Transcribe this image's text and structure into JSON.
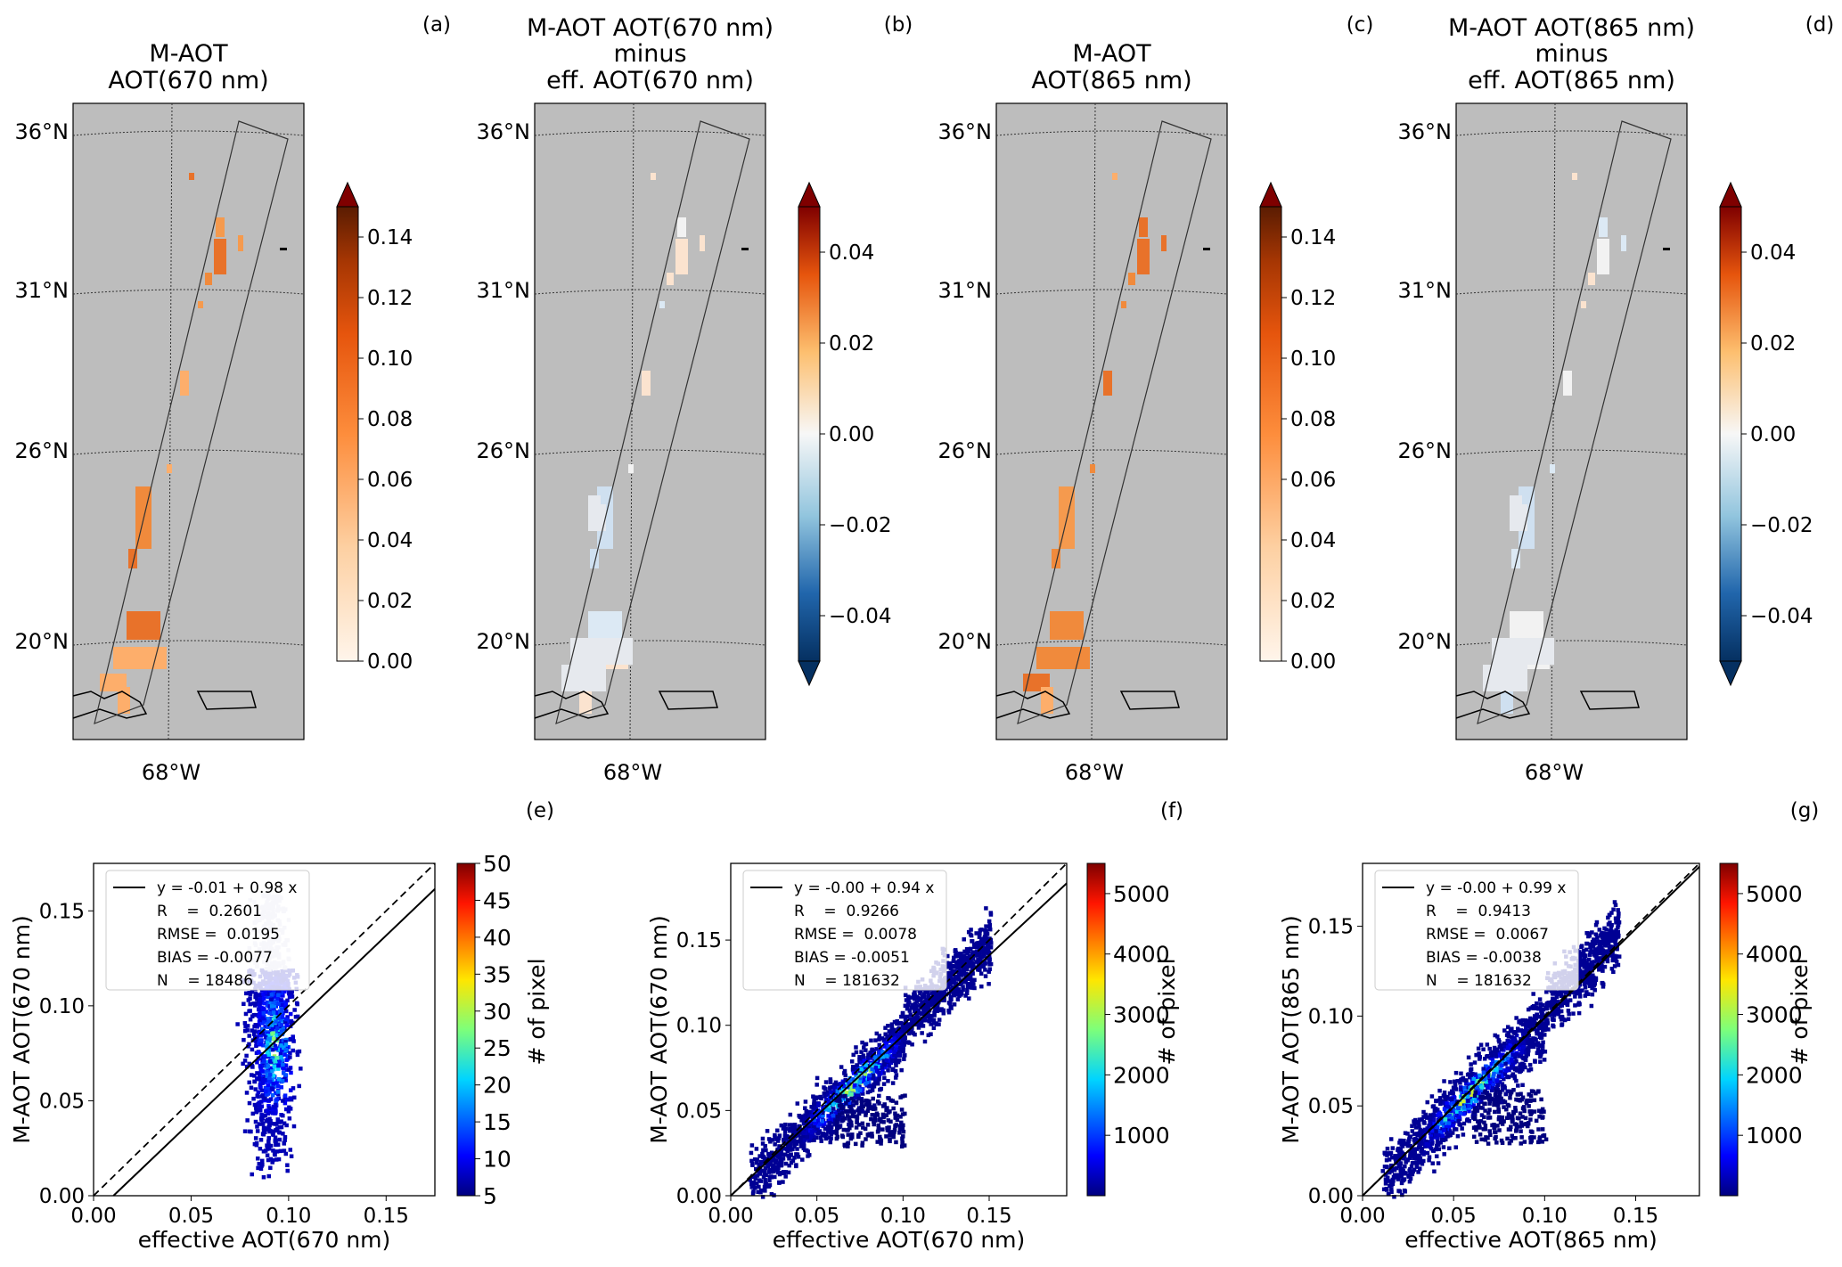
{
  "chart_data": [
    {
      "panel": "(a)",
      "type": "heatmap",
      "kind": "map",
      "title": [
        "M-AOT",
        "AOT(670 nm)"
      ],
      "lat_ticks": [
        "36°N",
        "31°N",
        "26°N",
        "20°N"
      ],
      "lon_ticks": [
        "68°W"
      ],
      "colorbar": {
        "cmap": "oranges",
        "range": [
          0,
          0.15
        ],
        "extend": "max",
        "ticks": [
          "0.00",
          "0.02",
          "0.04",
          "0.06",
          "0.08",
          "0.10",
          "0.12",
          "0.14"
        ]
      }
    },
    {
      "panel": "(b)",
      "type": "heatmap",
      "kind": "map",
      "title": [
        "M-AOT AOT(670 nm)",
        "minus",
        "eff. AOT(670 nm)"
      ],
      "lat_ticks": [
        "36°N",
        "31°N",
        "26°N",
        "20°N"
      ],
      "lon_ticks": [
        "68°W"
      ],
      "colorbar": {
        "cmap": "diverging",
        "range": [
          -0.05,
          0.05
        ],
        "extend": "both",
        "ticks": [
          "0.04",
          "0.02",
          "0.00",
          "−0.02",
          "−0.04"
        ]
      }
    },
    {
      "panel": "(c)",
      "type": "heatmap",
      "kind": "map",
      "title": [
        "M-AOT",
        "AOT(865 nm)"
      ],
      "lat_ticks": [
        "36°N",
        "31°N",
        "26°N",
        "20°N"
      ],
      "lon_ticks": [
        "68°W"
      ],
      "colorbar": {
        "cmap": "oranges",
        "range": [
          0,
          0.15
        ],
        "extend": "max",
        "ticks": [
          "0.00",
          "0.02",
          "0.04",
          "0.06",
          "0.08",
          "0.10",
          "0.12",
          "0.14"
        ]
      }
    },
    {
      "panel": "(d)",
      "type": "heatmap",
      "kind": "map",
      "title": [
        "M-AOT AOT(865 nm)",
        "minus",
        "eff. AOT(865 nm)"
      ],
      "lat_ticks": [
        "36°N",
        "31°N",
        "26°N",
        "20°N"
      ],
      "lon_ticks": [
        "68°W"
      ],
      "colorbar": {
        "cmap": "diverging",
        "range": [
          -0.05,
          0.05
        ],
        "extend": "both",
        "ticks": [
          "0.04",
          "0.02",
          "0.00",
          "−0.02",
          "−0.04"
        ]
      }
    },
    {
      "panel": "(e)",
      "type": "heatmap",
      "kind": "density-scatter",
      "xlabel": "effective AOT(670 nm)",
      "ylabel": "M-AOT AOT(670 nm)",
      "xlim": [
        0,
        0.175
      ],
      "ylim": [
        0,
        0.175
      ],
      "xticks": [
        "0.00",
        "0.05",
        "0.10",
        "0.15"
      ],
      "yticks": [
        "0.00",
        "0.05",
        "0.10",
        "0.15"
      ],
      "fit": {
        "intercept": -0.01,
        "slope": 0.98
      },
      "legend": [
        "y = -0.01 + 0.98 x",
        "R    =  0.2601",
        "RMSE =  0.0195",
        "BIAS = -0.0077",
        "N    = 18486"
      ],
      "legend_position": "upper-left",
      "cluster": {
        "x_center": 0.09,
        "x_spread": 0.008,
        "y_min": 0.01,
        "y_max": 0.12
      },
      "colorbar": {
        "label": "# of pixel",
        "range": [
          5,
          50
        ],
        "ticks": [
          "5",
          "10",
          "15",
          "20",
          "25",
          "30",
          "35",
          "40",
          "45",
          "50"
        ]
      }
    },
    {
      "panel": "(f)",
      "type": "heatmap",
      "kind": "density-scatter",
      "xlabel": "effective AOT(670 nm)",
      "ylabel": "M-AOT AOT(670 nm)",
      "xlim": [
        0,
        0.195
      ],
      "ylim": [
        0,
        0.195
      ],
      "xticks": [
        "0.00",
        "0.05",
        "0.10",
        "0.15"
      ],
      "yticks": [
        "0.00",
        "0.05",
        "0.10",
        "0.15"
      ],
      "fit": {
        "intercept": -0.0,
        "slope": 0.94
      },
      "legend": [
        "y = -0.00 + 0.94 x",
        "R    =  0.9266",
        "RMSE =  0.0078",
        "BIAS = -0.0051",
        "N    = 181632"
      ],
      "legend_position": "upper-left",
      "cluster": {
        "x_min": 0.01,
        "x_max": 0.15,
        "peak_x": 0.07
      },
      "colorbar": {
        "label": "# of pixel",
        "range": [
          0,
          5500
        ],
        "ticks": [
          "1000",
          "2000",
          "3000",
          "4000",
          "5000"
        ]
      }
    },
    {
      "panel": "(g)",
      "type": "heatmap",
      "kind": "density-scatter",
      "xlabel": "effective AOT(865 nm)",
      "ylabel": "M-AOT AOT(865 nm)",
      "xlim": [
        0,
        0.185
      ],
      "ylim": [
        0,
        0.185
      ],
      "xticks": [
        "0.00",
        "0.05",
        "0.10",
        "0.15"
      ],
      "yticks": [
        "0.00",
        "0.05",
        "0.10",
        "0.15"
      ],
      "fit": {
        "intercept": -0.0,
        "slope": 0.99
      },
      "legend": [
        "y = -0.00 + 0.99 x",
        "R    =  0.9413",
        "RMSE =  0.0067",
        "BIAS = -0.0038",
        "N    = 181632"
      ],
      "legend_position": "upper-left",
      "cluster": {
        "x_min": 0.01,
        "x_max": 0.14,
        "peak_x": 0.06
      },
      "colorbar": {
        "label": "# of pixel",
        "range": [
          0,
          5500
        ],
        "ticks": [
          "1000",
          "2000",
          "3000",
          "4000",
          "5000"
        ]
      }
    }
  ]
}
